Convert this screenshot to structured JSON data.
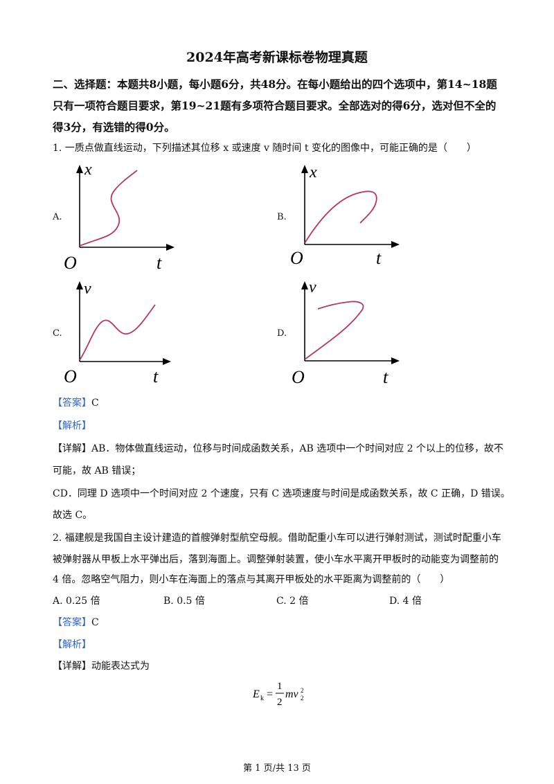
{
  "title": "2024年高考新课标卷物理真题",
  "section": {
    "heading": "二、选择题：本题共8小题，每小题6分，共48分。在每小题给出的四个选项中，第14~18题只有一项符合题目要求，第19~21题有多项符合题目要求。全部选对的得6分，选对但不全的得3分，有选错的得0分。"
  },
  "q1": {
    "stem": "1. 一质点做直线运动，下列描述其位移 x 或速度 v 随时间 t 变化的图像中，可能正确的是（　　）",
    "options": [
      {
        "label": "A.",
        "ylabel": "x",
        "xlabel": "t",
        "origin": "O"
      },
      {
        "label": "B.",
        "ylabel": "x",
        "xlabel": "t",
        "origin": "O"
      },
      {
        "label": "C.",
        "ylabel": "v",
        "xlabel": "t",
        "origin": "O"
      },
      {
        "label": "D.",
        "ylabel": "v",
        "xlabel": "t",
        "origin": "O"
      }
    ],
    "curve_color": "#b8336a",
    "answer_tag": "【答案】",
    "answer": "C",
    "analysis_tag": "【解析】",
    "detail_tag": "【详解】",
    "detail1": "AB．物体做直线运动，位移与时间成函数关系，AB 选项中一个时间对应 2 个以上的位移，故不",
    "detail2": "可能，故 AB 错误；",
    "detail3": "CD．同理 D 选项中一个时间对应 2 个速度，只有 C 选项速度与时间是成函数关系，故 C 正确，D 错误。",
    "detail4": "故选 C。"
  },
  "q2": {
    "line1": "2. 福建舰是我国自主设计建造的首艘弹射型航空母舰。借助配重小车可以进行弹射测试，测试时配重小车",
    "line2": "被弹射器从甲板上水平弹出后，落到海面上。调整弹射装置，使小车水平离开甲板时的动能变为调整前的",
    "line3": "4 倍。忽略空气阻力，则小车在海面上的落点与其离开甲板处的水平距离为调整前的（　　）",
    "options": [
      "A. 0.25 倍",
      "B. 0.5 倍",
      "C. 2 倍",
      "D. 4 倍"
    ],
    "answer_tag": "【答案】",
    "answer": "C",
    "analysis_tag": "【解析】",
    "detail_tag": "【详解】",
    "detail": "动能表达式为",
    "formula": {
      "lhs": "E",
      "lhs_sub": "k",
      "eq": "=",
      "num": "1",
      "den": "2",
      "rhs": "mv",
      "sup": "2",
      "sub": "2"
    }
  },
  "footer": "第 1 页/共 13 页"
}
